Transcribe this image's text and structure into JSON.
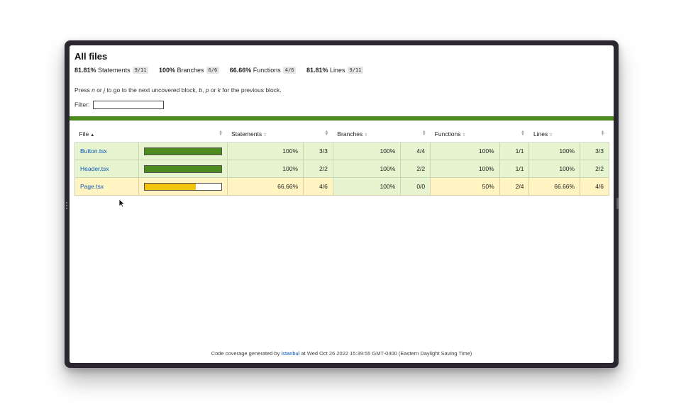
{
  "header": {
    "title": "All files"
  },
  "summary": [
    {
      "pct": "81.81%",
      "label": "Statements",
      "frac": "9/11"
    },
    {
      "pct": "100%",
      "label": "Branches",
      "frac": "6/6"
    },
    {
      "pct": "66.66%",
      "label": "Functions",
      "frac": "4/6"
    },
    {
      "pct": "81.81%",
      "label": "Lines",
      "frac": "9/11"
    }
  ],
  "help": {
    "t1": "Press ",
    "k1": "n",
    "t2": " or ",
    "k2": "j",
    "t3": " to go to the next uncovered block, ",
    "k3": "b",
    "t4": ", ",
    "k4": "p",
    "t5": " or ",
    "k5": "k",
    "t6": " for the previous block."
  },
  "filter": {
    "label": "Filter:",
    "value": ""
  },
  "columns": {
    "file": "File",
    "statements": "Statements",
    "branches": "Branches",
    "functions": "Functions",
    "lines": "Lines"
  },
  "rows": [
    {
      "file": "Button.tsx",
      "coverage": 1.0,
      "status": "high",
      "stmts_pct": "100%",
      "stmts": "3/3",
      "branches_pct": "100%",
      "branches": "4/4",
      "funcs_pct": "100%",
      "funcs": "1/1",
      "lines_pct": "100%",
      "lines": "3/3"
    },
    {
      "file": "Header.tsx",
      "coverage": 1.0,
      "status": "high",
      "stmts_pct": "100%",
      "stmts": "2/2",
      "branches_pct": "100%",
      "branches": "2/2",
      "funcs_pct": "100%",
      "funcs": "1/1",
      "lines_pct": "100%",
      "lines": "2/2"
    },
    {
      "file": "Page.tsx",
      "coverage": 0.6666,
      "status": "medium",
      "stmts_pct": "66.66%",
      "stmts": "4/6",
      "branches_pct": "100%",
      "branches": "0/0",
      "funcs_pct": "50%",
      "funcs": "2/4",
      "lines_pct": "66.66%",
      "lines": "4/6"
    }
  ],
  "footer": {
    "prefix": "Code coverage generated by ",
    "link": "istanbul",
    "suffix": " at Wed Oct 26 2022 15:39:55 GMT-0400 (Eastern Daylight Saving Time)"
  },
  "colors": {
    "high": "#e6f5d0",
    "medium": "#fff4c2",
    "bar_green": "#4d8b1e",
    "bar_yellow": "#f1c40f"
  }
}
